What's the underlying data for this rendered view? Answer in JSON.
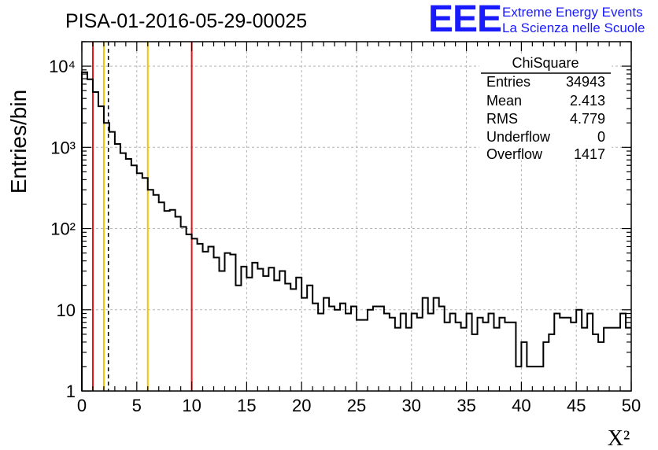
{
  "header": {
    "run_title": "PISA-01-2016-05-29-00025",
    "logo_mark": "EEE",
    "logo_line1": "Extreme Energy Events",
    "logo_line2": "La Scienza nelle Scuole",
    "logo_color": "#1a1aff"
  },
  "stats_box": {
    "title": "ChiSquare",
    "rows": [
      {
        "label": "Entries",
        "value": "34943"
      },
      {
        "label": "Mean",
        "value": "2.413"
      },
      {
        "label": "RMS",
        "value": "4.779"
      },
      {
        "label": "Underflow",
        "value": "0"
      },
      {
        "label": "Overflow",
        "value": "1417"
      }
    ]
  },
  "chart_data": {
    "type": "histogram",
    "xlabel": "X²",
    "ylabel": "Entries/bin",
    "xlim": [
      0,
      50
    ],
    "ylim": [
      1,
      20000
    ],
    "y_scale": "log",
    "grid": true,
    "bin_width": 0.5,
    "x_ticks": [
      0,
      5,
      10,
      15,
      20,
      25,
      30,
      35,
      40,
      45,
      50
    ],
    "y_ticks": [
      {
        "value": 1,
        "label": "1"
      },
      {
        "value": 10,
        "label": "10"
      },
      {
        "value": 100,
        "label": "10²"
      },
      {
        "value": 1000,
        "label": "10³"
      },
      {
        "value": 10000,
        "label": "10⁴"
      }
    ],
    "bin_values": [
      8400,
      6900,
      4800,
      3200,
      2000,
      1550,
      1100,
      850,
      720,
      600,
      480,
      420,
      300,
      260,
      210,
      165,
      170,
      140,
      105,
      85,
      75,
      65,
      52,
      60,
      44,
      30,
      50,
      48,
      20,
      34,
      25,
      38,
      32,
      26,
      33,
      23,
      30,
      21,
      18,
      25,
      14,
      20,
      12,
      9,
      14,
      11,
      10,
      12,
      9,
      11,
      7.5,
      7.5,
      10,
      11,
      11,
      9,
      8,
      6,
      9,
      6,
      9,
      8,
      14,
      9,
      14,
      11,
      7,
      9,
      7,
      6,
      9,
      5,
      8,
      7,
      9,
      6,
      8,
      7,
      7,
      2,
      4,
      2,
      2,
      2,
      4,
      5,
      9,
      8,
      8,
      7,
      10,
      6,
      9,
      5,
      4,
      6,
      6,
      6,
      9,
      6
    ],
    "vertical_lines": [
      {
        "x": 1,
        "color": "#e81010"
      },
      {
        "x": 2,
        "color": "#f0c400"
      },
      {
        "x": 2.413,
        "color": "#000000",
        "style": "dashed"
      },
      {
        "x": 6,
        "color": "#f0c400"
      },
      {
        "x": 10,
        "color": "#e81010"
      }
    ]
  }
}
